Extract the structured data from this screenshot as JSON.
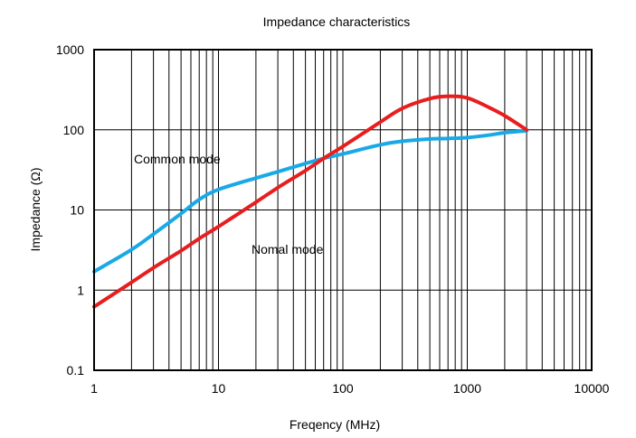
{
  "chart_data": {
    "type": "line",
    "title": "Impedance characteristics",
    "xlabel": "Freqency (MHz)",
    "ylabel": "Impedance (Ω)",
    "x_scale": "log",
    "y_scale": "log",
    "xlim": [
      1,
      10000
    ],
    "ylim": [
      0.1,
      1000
    ],
    "grid": true,
    "x_ticks": [
      "1",
      "10",
      "100",
      "1000",
      "10000"
    ],
    "y_ticks": [
      "0.1",
      "1",
      "10",
      "100",
      "1000"
    ],
    "annotations": [
      "Common mode",
      "Nomal mode"
    ],
    "series": [
      {
        "color": "#19a9e6",
        "x": [
          1,
          2,
          3,
          5,
          7,
          10,
          20,
          30,
          50,
          70,
          100,
          200,
          300,
          500,
          700,
          1000,
          1500,
          2000,
          3000
        ],
        "values": [
          1.7,
          3.2,
          5.0,
          9.0,
          13.5,
          18,
          25,
          30,
          38,
          44,
          50,
          65,
          72,
          77,
          78,
          80,
          86,
          92,
          97
        ]
      },
      {
        "color": "#e81e1e",
        "x": [
          1,
          2,
          3,
          5,
          7,
          10,
          20,
          30,
          50,
          70,
          100,
          200,
          300,
          500,
          700,
          1000,
          1500,
          2000,
          3000
        ],
        "values": [
          0.62,
          1.25,
          1.9,
          3.1,
          4.4,
          6.2,
          12.5,
          19,
          31,
          44,
          62,
          125,
          185,
          245,
          262,
          250,
          190,
          150,
          100
        ]
      }
    ]
  }
}
